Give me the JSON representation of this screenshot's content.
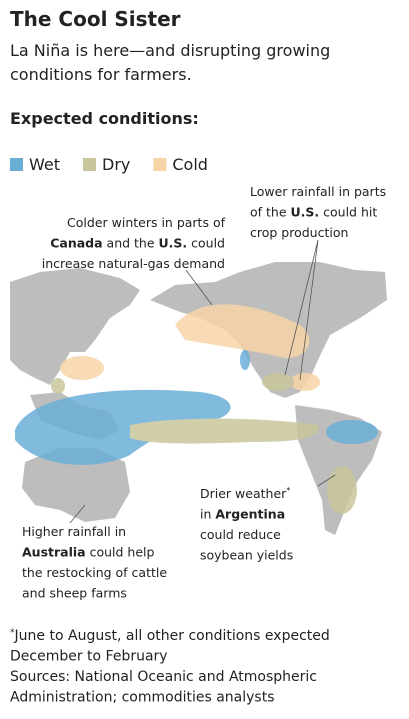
{
  "header": {
    "title": "The Cool Sister",
    "subtitle": [
      "La Niña is here—and disrupting growing",
      "conditions for farmers."
    ]
  },
  "heading": "Expected conditions:",
  "legend": [
    {
      "name": "Wet",
      "color": "#6aaed6"
    },
    {
      "name": "Dry",
      "color": "#c9c69c"
    },
    {
      "name": "Cold",
      "color": "#f7d5a8"
    }
  ],
  "annotations": [
    {
      "lines": [
        [
          {
            "text": "Lower rainfall in parts"
          }
        ],
        [
          {
            "text": "of the "
          },
          {
            "text": "U.S.",
            "bold": true
          },
          {
            "text": " could hit"
          }
        ],
        [
          {
            "text": "crop production"
          }
        ]
      ]
    },
    {
      "lines": [
        [
          {
            "text": "Colder winters in parts of"
          }
        ],
        [
          {
            "text": "Canada",
            "bold": true
          },
          {
            "text": " and the "
          },
          {
            "text": "U.S.",
            "bold": true
          },
          {
            "text": " could"
          }
        ],
        [
          {
            "text": "increase natural-gas demand"
          }
        ]
      ]
    },
    {
      "lines": [
        [
          {
            "text": "Drier weather"
          },
          {
            "text": "*",
            "sup": true
          }
        ],
        [
          {
            "text": "in "
          },
          {
            "text": "Argentina",
            "bold": true
          }
        ],
        [
          {
            "text": "could reduce"
          }
        ],
        [
          {
            "text": "soybean yields"
          }
        ]
      ]
    },
    {
      "lines": [
        [
          {
            "text": "Higher rainfall in"
          }
        ],
        [
          {
            "text": "Australia",
            "bold": true
          },
          {
            "text": " could help"
          }
        ],
        [
          {
            "text": "the restocking of cattle"
          }
        ],
        [
          {
            "text": "and sheep farms"
          }
        ]
      ]
    }
  ],
  "footnote": {
    "lines": [
      [
        {
          "text": "*",
          "sup": true
        },
        {
          "text": "June to August, all other conditions expected"
        }
      ],
      [
        {
          "text": "December to February"
        }
      ],
      [
        {
          "text": "Sources: National Oceanic and Atmospheric"
        }
      ],
      [
        {
          "text": "Administration; commodities analysts"
        }
      ]
    ]
  }
}
